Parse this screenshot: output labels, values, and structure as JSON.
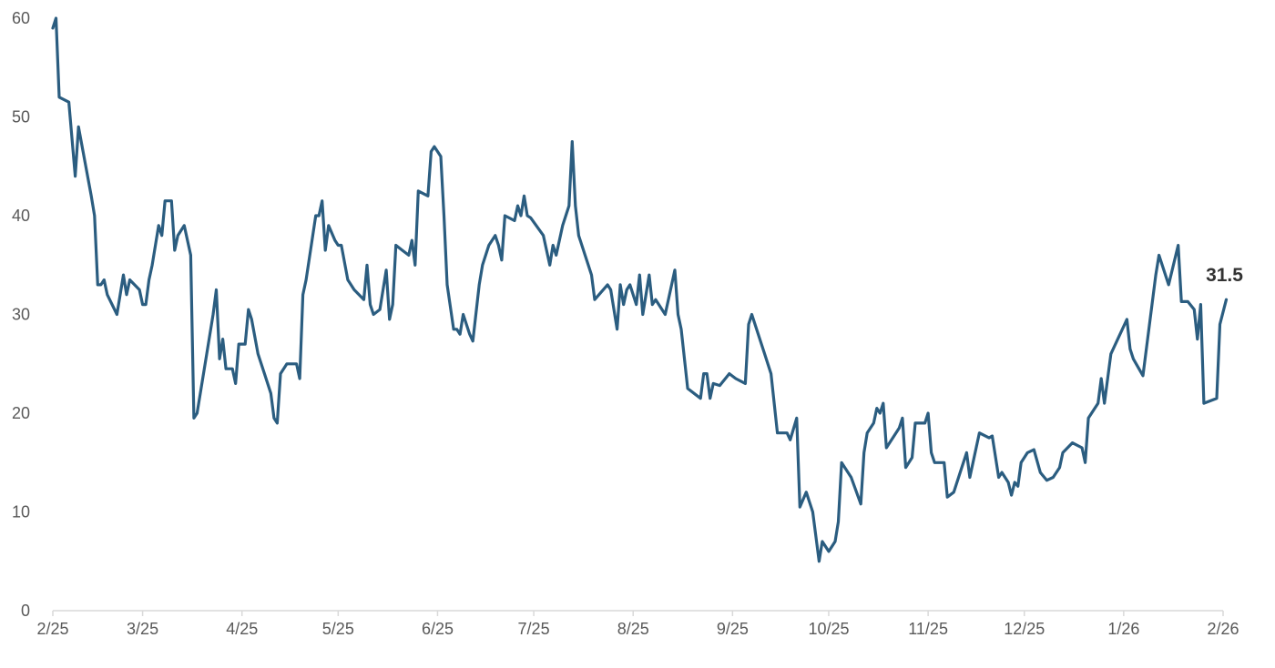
{
  "chart_data": {
    "type": "line",
    "title": "",
    "xlabel": "",
    "ylabel": "",
    "ylim": [
      0,
      60
    ],
    "xlim": [
      "2025-02-01",
      "2026-02-01"
    ],
    "grid": false,
    "legend": "none",
    "y_ticks": [
      "0",
      "10",
      "20",
      "30",
      "40",
      "50",
      "60"
    ],
    "x_ticks": [
      {
        "date": "2025-02-01",
        "label": "2/25"
      },
      {
        "date": "2025-03-01",
        "label": "3/25"
      },
      {
        "date": "2025-04-01",
        "label": "4/25"
      },
      {
        "date": "2025-05-01",
        "label": "5/25"
      },
      {
        "date": "2025-06-01",
        "label": "6/25"
      },
      {
        "date": "2025-07-01",
        "label": "7/25"
      },
      {
        "date": "2025-08-01",
        "label": "8/25"
      },
      {
        "date": "2025-09-01",
        "label": "9/25"
      },
      {
        "date": "2025-10-01",
        "label": "10/25"
      },
      {
        "date": "2025-11-01",
        "label": "11/25"
      },
      {
        "date": "2025-12-01",
        "label": "12/25"
      },
      {
        "date": "2026-01-01",
        "label": "1/26"
      },
      {
        "date": "2026-02-01",
        "label": "2/26"
      }
    ],
    "colors": {
      "line": "#2b5d80",
      "axis": "#d9d9d9",
      "end_label": "#333333"
    },
    "end_label": "31.5",
    "series": [
      {
        "x": [
          "2025-02-01",
          "2025-02-02",
          "2025-02-03",
          "2025-02-06",
          "2025-02-08",
          "2025-02-09",
          "2025-02-13",
          "2025-02-14",
          "2025-02-15",
          "2025-02-16",
          "2025-02-17",
          "2025-02-18",
          "2025-02-21",
          "2025-02-23",
          "2025-02-24",
          "2025-02-25",
          "2025-02-28",
          "2025-03-01",
          "2025-03-02",
          "2025-03-03",
          "2025-03-04",
          "2025-03-06",
          "2025-03-07",
          "2025-03-08",
          "2025-03-10",
          "2025-03-11",
          "2025-03-12",
          "2025-03-14",
          "2025-03-16",
          "2025-03-17",
          "2025-03-18",
          "2025-03-21",
          "2025-03-23",
          "2025-03-24",
          "2025-03-25",
          "2025-03-26",
          "2025-03-27",
          "2025-03-29",
          "2025-03-30",
          "2025-03-31",
          "2025-04-02",
          "2025-04-03",
          "2025-04-04",
          "2025-04-06",
          "2025-04-08",
          "2025-04-10",
          "2025-04-11",
          "2025-04-12",
          "2025-04-13",
          "2025-04-15",
          "2025-04-18",
          "2025-04-19",
          "2025-04-20",
          "2025-04-21",
          "2025-04-24",
          "2025-04-25",
          "2025-04-26",
          "2025-04-27",
          "2025-04-28",
          "2025-04-30",
          "2025-05-01",
          "2025-05-02",
          "2025-05-04",
          "2025-05-06",
          "2025-05-09",
          "2025-05-10",
          "2025-05-11",
          "2025-05-12",
          "2025-05-14",
          "2025-05-16",
          "2025-05-17",
          "2025-05-18",
          "2025-05-19",
          "2025-05-21",
          "2025-05-23",
          "2025-05-24",
          "2025-05-25",
          "2025-05-26",
          "2025-05-29",
          "2025-05-30",
          "2025-05-31",
          "2025-06-02",
          "2025-06-03",
          "2025-06-04",
          "2025-06-06",
          "2025-06-07",
          "2025-06-08",
          "2025-06-09",
          "2025-06-11",
          "2025-06-12",
          "2025-06-14",
          "2025-06-15",
          "2025-06-17",
          "2025-06-19",
          "2025-06-20",
          "2025-06-21",
          "2025-06-22",
          "2025-06-25",
          "2025-06-26",
          "2025-06-27",
          "2025-06-28",
          "2025-06-29",
          "2025-06-30",
          "2025-07-04",
          "2025-07-06",
          "2025-07-07",
          "2025-07-08",
          "2025-07-10",
          "2025-07-12",
          "2025-07-13",
          "2025-07-14",
          "2025-07-15",
          "2025-07-19",
          "2025-07-20",
          "2025-07-24",
          "2025-07-25",
          "2025-07-27",
          "2025-07-28",
          "2025-07-29",
          "2025-07-30",
          "2025-07-31",
          "2025-08-02",
          "2025-08-03",
          "2025-08-04",
          "2025-08-06",
          "2025-08-07",
          "2025-08-08",
          "2025-08-11",
          "2025-08-14",
          "2025-08-15",
          "2025-08-16",
          "2025-08-18",
          "2025-08-22",
          "2025-08-23",
          "2025-08-24",
          "2025-08-25",
          "2025-08-26",
          "2025-08-28",
          "2025-08-31",
          "2025-09-02",
          "2025-09-05",
          "2025-09-06",
          "2025-09-07",
          "2025-09-11",
          "2025-09-13",
          "2025-09-15",
          "2025-09-18",
          "2025-09-19",
          "2025-09-21",
          "2025-09-22",
          "2025-09-24",
          "2025-09-26",
          "2025-09-27",
          "2025-09-28",
          "2025-09-29",
          "2025-10-01",
          "2025-10-03",
          "2025-10-04",
          "2025-10-05",
          "2025-10-08",
          "2025-10-11",
          "2025-10-12",
          "2025-10-13",
          "2025-10-15",
          "2025-10-16",
          "2025-10-17",
          "2025-10-18",
          "2025-10-19",
          "2025-10-23",
          "2025-10-24",
          "2025-10-25",
          "2025-10-27",
          "2025-10-28",
          "2025-10-31",
          "2025-11-01",
          "2025-11-02",
          "2025-11-03",
          "2025-11-06",
          "2025-11-07",
          "2025-11-09",
          "2025-11-11",
          "2025-11-13",
          "2025-11-14",
          "2025-11-17",
          "2025-11-20",
          "2025-11-21",
          "2025-11-23",
          "2025-11-24",
          "2025-11-26",
          "2025-11-27",
          "2025-11-28",
          "2025-11-29",
          "2025-11-30",
          "2025-12-02",
          "2025-12-04",
          "2025-12-06",
          "2025-12-08",
          "2025-12-10",
          "2025-12-12",
          "2025-12-13",
          "2025-12-16",
          "2025-12-19",
          "2025-12-20",
          "2025-12-21",
          "2025-12-24",
          "2025-12-25",
          "2025-12-26",
          "2025-12-28",
          "2026-01-02",
          "2026-01-03",
          "2026-01-04",
          "2026-01-07",
          "2026-01-11",
          "2026-01-12",
          "2026-01-15",
          "2026-01-18",
          "2026-01-19",
          "2026-01-21",
          "2026-01-23",
          "2026-01-24",
          "2026-01-25",
          "2026-01-26",
          "2026-01-30",
          "2026-01-31",
          "2026-02-02"
        ],
        "y": [
          59,
          60,
          52,
          51.5,
          44,
          49,
          42,
          40,
          33,
          33,
          33.5,
          32,
          30,
          34,
          32,
          33.5,
          32.5,
          31,
          31,
          33.5,
          35,
          39,
          38,
          41.5,
          41.5,
          36.5,
          38,
          39,
          36,
          19.5,
          20,
          26,
          30,
          32.5,
          25.5,
          27.5,
          24.5,
          24.5,
          23,
          27,
          27,
          30.5,
          29.5,
          26,
          24,
          22,
          19.5,
          19,
          24,
          25,
          25,
          23.5,
          32,
          33.5,
          40,
          40,
          41.5,
          36.5,
          39,
          37.5,
          37,
          37,
          33.5,
          32.5,
          31.5,
          35,
          31,
          30,
          30.5,
          34.5,
          29.5,
          31,
          37,
          36.5,
          36,
          37.5,
          35,
          42.5,
          42,
          46.5,
          47,
          46,
          40,
          33,
          28.5,
          28.5,
          28,
          30,
          28,
          27.3,
          33,
          35,
          37,
          38,
          37,
          35.5,
          40,
          39.5,
          41,
          40,
          42,
          40,
          39.8,
          38,
          35,
          37,
          36,
          39,
          41,
          47.5,
          41,
          38,
          34,
          31.5,
          33,
          32.5,
          28.5,
          33,
          31,
          32.5,
          33,
          31,
          34,
          30,
          34,
          31,
          31.5,
          30,
          34.5,
          30,
          28.5,
          22.5,
          21.5,
          24,
          24,
          21.5,
          23,
          22.8,
          24,
          23.5,
          23,
          29,
          30,
          26,
          24,
          18,
          18,
          17.3,
          19.5,
          10.5,
          12,
          10,
          7.5,
          5,
          7,
          6,
          7,
          9,
          15,
          13.5,
          10.8,
          16,
          18,
          19,
          20.5,
          20,
          21,
          16.5,
          18.5,
          19.5,
          14.5,
          15.5,
          19,
          19,
          20,
          16,
          15,
          15,
          11.5,
          12,
          14,
          16,
          13.5,
          18,
          17.5,
          17.7,
          13.5,
          14,
          13,
          11.7,
          13,
          12.6,
          15,
          16,
          16.3,
          14,
          13.2,
          13.5,
          14.5,
          16,
          17,
          16.5,
          15,
          19.5,
          21,
          23.5,
          21,
          26,
          29.5,
          26.5,
          25.5,
          23.8,
          34,
          36,
          33,
          37,
          31.3,
          31.3,
          30.5,
          27.5,
          31,
          21,
          21.5,
          29,
          31.5
        ]
      }
    ]
  }
}
